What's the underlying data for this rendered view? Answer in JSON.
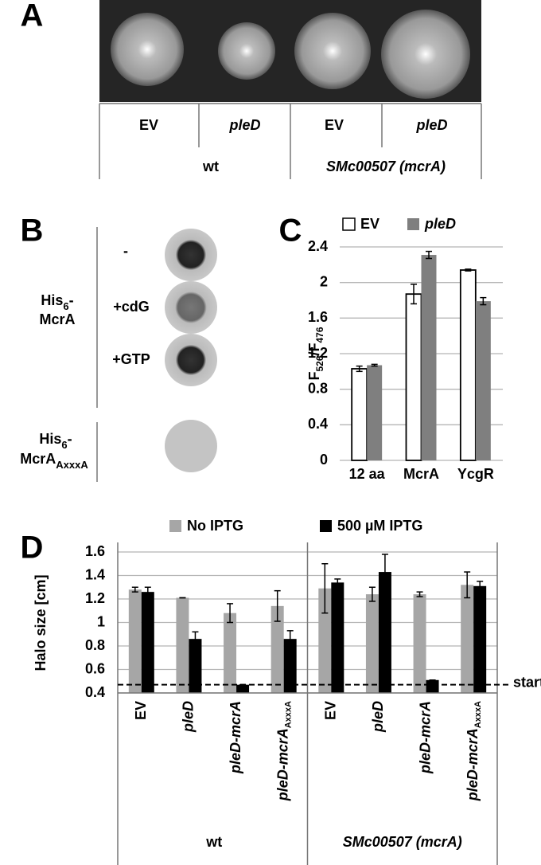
{
  "panel_a": {
    "letter": "A",
    "lanes": [
      "EV",
      "pleD",
      "EV",
      "pleD"
    ],
    "groups": [
      "wt",
      "SMc00507 (mcrA)"
    ]
  },
  "panel_b": {
    "letter": "B",
    "conditions": [
      "-",
      "+cdG",
      "+GTP"
    ],
    "protein_1": [
      "His",
      "6",
      "-",
      "McrA"
    ],
    "protein_2": [
      "His",
      "6",
      "-",
      "McrA",
      "AxxxA"
    ]
  },
  "chart_data": [
    {
      "panel": "C",
      "type": "bar",
      "ylabel": [
        "F",
        "526",
        "/F",
        "476"
      ],
      "categories": [
        "12 aa",
        "McrA",
        "YcgR"
      ],
      "series": [
        {
          "name": "EV",
          "color": "#ffffff",
          "values": [
            1.03,
            1.87,
            2.14
          ],
          "errors": [
            0.03,
            0.11,
            0.01
          ]
        },
        {
          "name": "pleD",
          "color": "#7f7f7f",
          "values": [
            1.07,
            2.31,
            1.79
          ],
          "errors": [
            0.01,
            0.04,
            0.04
          ]
        }
      ],
      "ylim": [
        0,
        2.4
      ],
      "yticks": [
        0,
        0.4,
        0.8,
        1.2,
        1.6,
        2,
        2.4
      ],
      "grid": true
    },
    {
      "panel": "D",
      "type": "bar",
      "ylabel": "Halo size [cm]",
      "categories": [
        "EV",
        "pleD",
        "pleD-mcrA",
        "pleD-mcrA",
        "EV",
        "pleD",
        "pleD-mcrA",
        "pleD-mcrA"
      ],
      "category_subscripts": [
        null,
        null,
        null,
        "AxxxA",
        null,
        null,
        null,
        "AxxxA"
      ],
      "groups": [
        "wt",
        "SMc00507 (mcrA)"
      ],
      "series": [
        {
          "name": "No IPTG",
          "color": "#a6a6a6",
          "values": [
            1.28,
            1.21,
            1.08,
            1.14,
            1.29,
            1.24,
            1.24,
            1.32
          ],
          "errors": [
            0.02,
            0,
            0.08,
            0.13,
            0.21,
            0.06,
            0.02,
            0.11
          ]
        },
        {
          "name": "500 µM IPTG",
          "color": "#000000",
          "values": [
            1.26,
            0.86,
            0.47,
            0.86,
            1.34,
            1.43,
            0.51,
            1.31
          ],
          "errors": [
            0.04,
            0.06,
            0,
            0.07,
            0.03,
            0.15,
            0,
            0.04
          ]
        }
      ],
      "ylim": [
        0.4,
        1.6
      ],
      "yticks": [
        0.4,
        0.6,
        0.8,
        1,
        1.2,
        1.4,
        1.6
      ],
      "grid": true,
      "annotation": {
        "value": 0.47,
        "label": "start"
      }
    }
  ]
}
